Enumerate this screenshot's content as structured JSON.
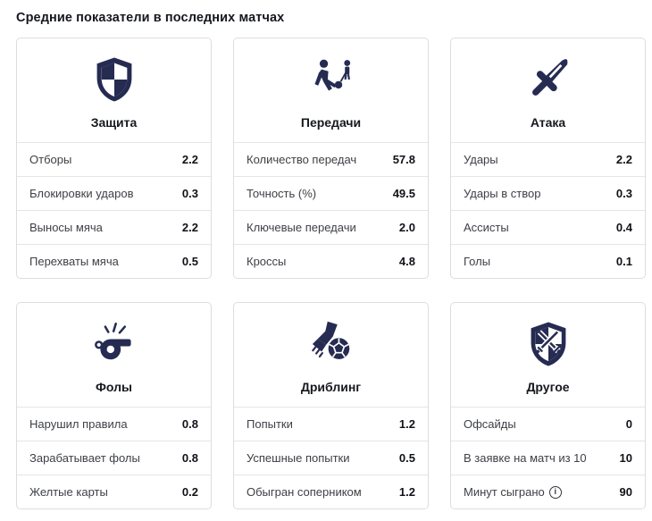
{
  "page": {
    "title": "Средние показатели в последних матчах"
  },
  "colors": {
    "accent": "#262b52",
    "card_border": "#ddddde",
    "row_divider": "#e5e5e6",
    "label_text": "#3e4046",
    "value_text": "#101218"
  },
  "cards": [
    {
      "title": "Защита",
      "icon": "shield-icon",
      "rows": [
        {
          "label": "Отборы",
          "value": "2.2"
        },
        {
          "label": "Блокировки ударов",
          "value": "0.3"
        },
        {
          "label": "Выносы мяча",
          "value": "2.2"
        },
        {
          "label": "Перехваты мяча",
          "value": "0.5"
        }
      ]
    },
    {
      "title": "Передачи",
      "icon": "passing-players-icon",
      "rows": [
        {
          "label": "Количество передач",
          "value": "57.8"
        },
        {
          "label": "Точность (%)",
          "value": "49.5"
        },
        {
          "label": "Ключевые передачи",
          "value": "2.0"
        },
        {
          "label": "Кроссы",
          "value": "4.8"
        }
      ]
    },
    {
      "title": "Атака",
      "icon": "sword-icon",
      "rows": [
        {
          "label": "Удары",
          "value": "2.2"
        },
        {
          "label": "Удары в створ",
          "value": "0.3"
        },
        {
          "label": "Ассисты",
          "value": "0.4"
        },
        {
          "label": "Голы",
          "value": "0.1"
        }
      ]
    },
    {
      "title": "Фолы",
      "icon": "whistle-icon",
      "rows": [
        {
          "label": "Нарушил правила",
          "value": "0.8"
        },
        {
          "label": "Зарабатывает фолы",
          "value": "0.8"
        },
        {
          "label": "Желтые карты",
          "value": "0.2"
        }
      ]
    },
    {
      "title": "Дриблинг",
      "icon": "dribbling-foot-ball-icon",
      "rows": [
        {
          "label": "Попытки",
          "value": "1.2"
        },
        {
          "label": "Успешные попытки",
          "value": "0.5"
        },
        {
          "label": "Обыгран соперником",
          "value": "1.2"
        }
      ]
    },
    {
      "title": "Другое",
      "icon": "shield-crossed-swords-icon",
      "rows": [
        {
          "label": "Офсайды",
          "value": "0"
        },
        {
          "label": "В заявке на матч из 10",
          "value": "10"
        },
        {
          "label": "Минут сыграно",
          "value": "90",
          "info": true
        }
      ]
    }
  ]
}
